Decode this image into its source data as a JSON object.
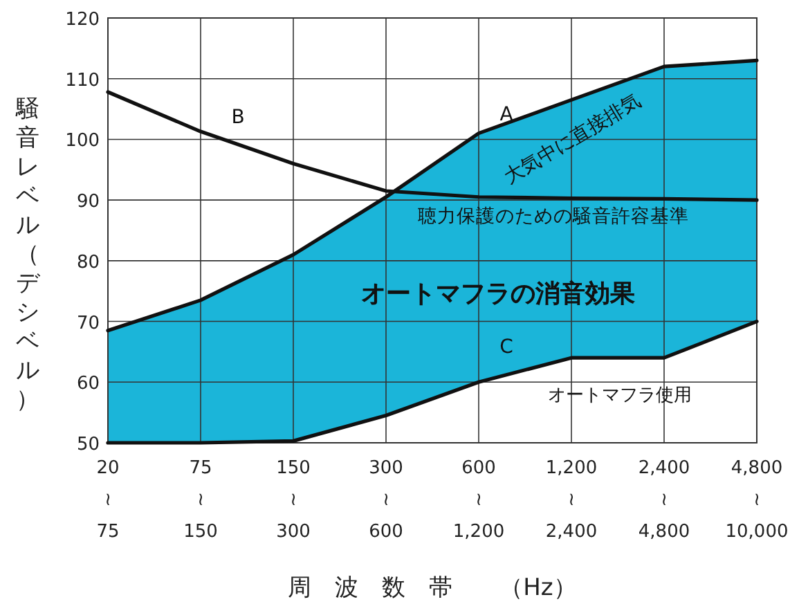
{
  "chart_data": {
    "type": "line",
    "xlabel": "周　波　数　帯　　（Hz）",
    "ylabel": "騒音レベル（デシベル）",
    "ylim": [
      50,
      120
    ],
    "categories": [
      "20\n≀\n75",
      "75\n≀\n150",
      "150\n≀\n300",
      "300\n≀\n600",
      "600\n≀\n1,200",
      "1,200\n≀\n2,400",
      "2,400\n≀\n4,800",
      "4,800\n≀\n10,000"
    ],
    "yticks": [
      50,
      60,
      70,
      80,
      90,
      100,
      110,
      120
    ],
    "grid": true,
    "series": [
      {
        "type": "area",
        "color": "#1bb5d9",
        "values": [
          68.5,
          73.5,
          81,
          90.5,
          101,
          106.5,
          112,
          113
        ]
      },
      {
        "color": "#111111",
        "values": [
          107.8,
          101.3,
          96,
          91.5,
          90.5,
          90.3,
          90.2,
          90
        ]
      },
      {
        "color": "#111111",
        "values": [
          50,
          50,
          50.3,
          54.5,
          60,
          64,
          64,
          70
        ]
      }
    ],
    "annotations": [
      "A",
      "B",
      "C",
      "大気中に直接排気",
      "聴力保護のための騒音許容基準",
      "オートマフラの消音効果",
      "オートマフラ使用"
    ]
  }
}
